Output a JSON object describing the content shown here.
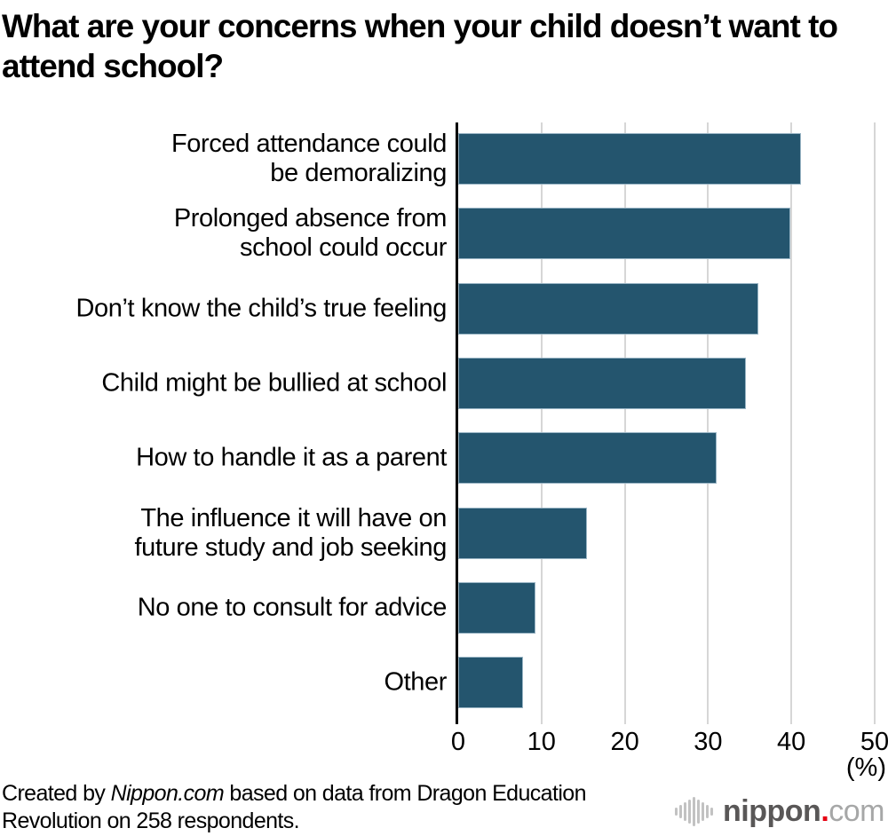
{
  "chart_data": {
    "type": "bar",
    "orientation": "horizontal",
    "title": "What are your concerns when your child doesn’t want to attend school?",
    "categories": [
      "Forced attendance could\nbe demoralizing",
      "Prolonged absence from\nschool could occur",
      "Don’t know the child’s true feeling",
      "Child might be bullied at school",
      "How to handle it as a parent",
      "The influence it will have on\nfuture study and job seeking",
      "No one to consult for advice",
      "Other"
    ],
    "values": [
      41.1,
      39.9,
      36.0,
      34.5,
      31.0,
      15.5,
      9.3,
      7.8
    ],
    "x_ticks": [
      0,
      10,
      20,
      30,
      40,
      50
    ],
    "xlim": [
      0,
      50
    ],
    "unit_label": "(%)",
    "grid": true,
    "legend": false,
    "bar_color": "#24556E",
    "gridline_color": "#d6d6d6",
    "axis_color": "#000000"
  },
  "footer": {
    "prefix": "Created by ",
    "source": "Nippon.com",
    "suffix": " based on data from Dragon Education Revolution on 258 respondents."
  },
  "logo": {
    "brand": "nippon",
    "dot": ".",
    "tld": "com",
    "dot_color": "#e60012"
  }
}
